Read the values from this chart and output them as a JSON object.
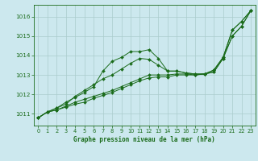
{
  "title": "Graphe pression niveau de la mer (hPa)",
  "bg_color": "#cce8ee",
  "grid_color": "#aacccc",
  "line_color": "#1a6b1a",
  "xlim": [
    -0.5,
    23.5
  ],
  "ylim": [
    1010.4,
    1016.6
  ],
  "yticks": [
    1011,
    1012,
    1013,
    1014,
    1015,
    1016
  ],
  "xticks": [
    0,
    1,
    2,
    3,
    4,
    5,
    6,
    7,
    8,
    9,
    10,
    11,
    12,
    13,
    14,
    15,
    16,
    17,
    18,
    19,
    20,
    21,
    22,
    23
  ],
  "series": [
    {
      "x": [
        0,
        1,
        2,
        3,
        4,
        5,
        6,
        7,
        8,
        9,
        10,
        11,
        12,
        13,
        14,
        15,
        16,
        17,
        18,
        19,
        20,
        21,
        22,
        23
      ],
      "y": [
        1010.8,
        1011.1,
        1011.3,
        1011.6,
        1011.85,
        1012.1,
        1012.4,
        1013.2,
        1013.7,
        1013.9,
        1014.2,
        1014.2,
        1014.3,
        1013.85,
        1013.2,
        1013.2,
        1013.1,
        1013.05,
        1013.05,
        1013.25,
        1013.9,
        1015.3,
        1015.75,
        1016.3
      ]
    },
    {
      "x": [
        0,
        1,
        2,
        3,
        4,
        5,
        6,
        7,
        8,
        9,
        10,
        11,
        12,
        13,
        14,
        15,
        16,
        17,
        18,
        19,
        20,
        21,
        22,
        23
      ],
      "y": [
        1010.8,
        1011.1,
        1011.3,
        1011.5,
        1011.9,
        1012.2,
        1012.5,
        1012.8,
        1013.0,
        1013.3,
        1013.6,
        1013.85,
        1013.8,
        1013.5,
        1013.2,
        1013.2,
        1013.1,
        1013.05,
        1013.05,
        1013.25,
        1013.9,
        1015.3,
        1015.75,
        1016.3
      ]
    },
    {
      "x": [
        0,
        1,
        2,
        3,
        4,
        5,
        6,
        7,
        8,
        9,
        10,
        11,
        12,
        13,
        14,
        15,
        16,
        17,
        18,
        19,
        20,
        21,
        22,
        23
      ],
      "y": [
        1010.8,
        1011.1,
        1011.2,
        1011.4,
        1011.6,
        1011.75,
        1011.9,
        1012.05,
        1012.2,
        1012.4,
        1012.6,
        1012.8,
        1013.0,
        1013.0,
        1013.0,
        1013.05,
        1013.05,
        1013.0,
        1013.05,
        1013.15,
        1013.85,
        1015.0,
        1015.5,
        1016.3
      ]
    },
    {
      "x": [
        0,
        1,
        2,
        3,
        4,
        5,
        6,
        7,
        8,
        9,
        10,
        11,
        12,
        13,
        14,
        15,
        16,
        17,
        18,
        19,
        20,
        21,
        22,
        23
      ],
      "y": [
        1010.8,
        1011.1,
        1011.2,
        1011.35,
        1011.5,
        1011.6,
        1011.8,
        1011.95,
        1012.1,
        1012.3,
        1012.5,
        1012.7,
        1012.85,
        1012.9,
        1012.9,
        1013.0,
        1013.0,
        1013.0,
        1013.05,
        1013.15,
        1013.85,
        1015.0,
        1015.5,
        1016.3
      ]
    }
  ]
}
